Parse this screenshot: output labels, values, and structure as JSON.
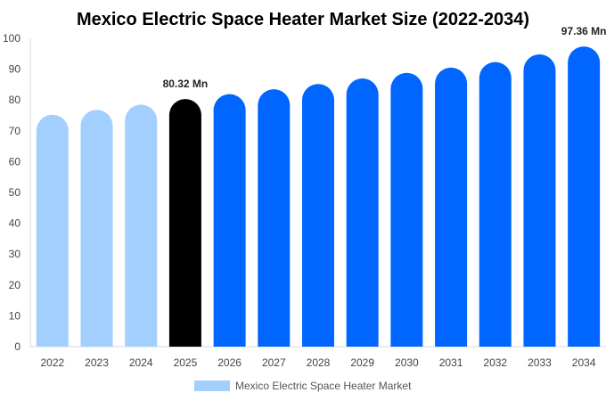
{
  "chart_data": {
    "type": "bar",
    "title": "Mexico Electric Space Heater Market Size (2022-2034)",
    "categories": [
      "2022",
      "2023",
      "2024",
      "2025",
      "2026",
      "2027",
      "2028",
      "2029",
      "2030",
      "2031",
      "2032",
      "2033",
      "2034"
    ],
    "series": [
      {
        "name": "Mexico Electric Space Heater Market",
        "values": [
          75.2,
          76.8,
          78.5,
          80.32,
          81.9,
          83.5,
          85.2,
          87.0,
          88.8,
          90.5,
          92.3,
          94.8,
          97.36
        ]
      }
    ],
    "data_labels": [
      {
        "category": "2025",
        "text": "80.32 Mn"
      },
      {
        "category": "2034",
        "text": "97.36 Mn"
      }
    ],
    "ylim": [
      0,
      100
    ],
    "yticks": [
      0,
      10,
      20,
      30,
      40,
      50,
      60,
      70,
      80,
      90,
      100
    ],
    "grid": false,
    "legend_position": "bottom",
    "colors": {
      "historical": "#a2cffe",
      "current": "#000000",
      "forecast": "#0066ff",
      "legend_swatch": "#a2cffe"
    },
    "historical_categories": [
      "2022",
      "2023",
      "2024"
    ],
    "current_category": "2025"
  }
}
